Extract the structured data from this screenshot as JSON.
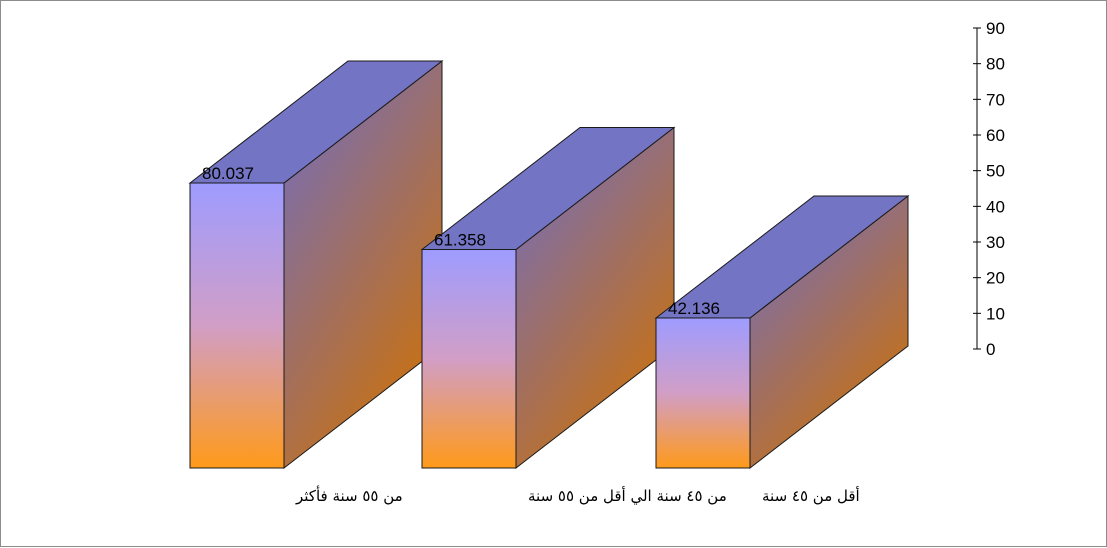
{
  "chart_data": {
    "type": "bar",
    "style": "3d-column",
    "title": "",
    "xlabel": "",
    "ylabel": "",
    "categories": [
      "من ٥٥ سنة فأكثر",
      "من ٤٥ سنة الي أقل من ٥٥ سنة",
      "أقل من ٤٥ سنة"
    ],
    "values": [
      80.037,
      61.358,
      42.136
    ],
    "value_labels": [
      "80.037",
      "61.358",
      "42.136"
    ],
    "ylim": [
      0,
      90
    ],
    "yticks": [
      "0",
      "10",
      "20",
      "30",
      "40",
      "50",
      "60",
      "70",
      "80",
      "90"
    ],
    "y_axis_position": "right",
    "grid": false,
    "legend": "none",
    "colors": {
      "front_top": "#9e9cff",
      "front_mid": "#d19ec6",
      "front_bottom": "#ff9a1a",
      "side_top": "#6e6ec8",
      "side_bottom": "#c9700f",
      "top_face": "#7474c4",
      "edge": "#1a1a1a"
    }
  }
}
